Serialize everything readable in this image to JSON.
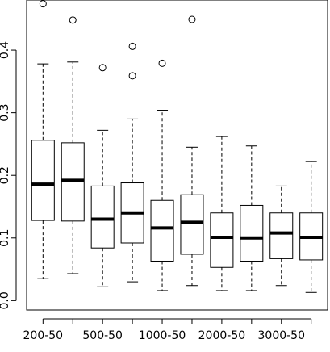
{
  "chart_data": {
    "type": "boxplot",
    "title": "",
    "xlabel": "",
    "ylabel": "",
    "ylim": [
      -0.015,
      0.48
    ],
    "y_ticks": [
      0.0,
      0.1,
      0.2,
      0.3,
      0.4
    ],
    "y_tick_labels": [
      "0.0",
      "0.1",
      "0.2",
      "0.3",
      "0.4"
    ],
    "x_tick_labels": [
      "200-50",
      "500-50",
      "1000-50",
      "2000-50",
      "3000-50"
    ],
    "x_tick_positions": [
      1,
      3,
      5,
      7,
      9
    ],
    "boxes": [
      {
        "position": 1,
        "whisker_low": 0.035,
        "q1": 0.128,
        "median": 0.186,
        "q3": 0.256,
        "whisker_high": 0.378,
        "outliers": [
          0.474
        ]
      },
      {
        "position": 2,
        "whisker_low": 0.043,
        "q1": 0.127,
        "median": 0.192,
        "q3": 0.252,
        "whisker_high": 0.381,
        "outliers": [
          0.448
        ]
      },
      {
        "position": 3,
        "whisker_low": 0.022,
        "q1": 0.084,
        "median": 0.13,
        "q3": 0.183,
        "whisker_high": 0.272,
        "outliers": [
          0.372
        ]
      },
      {
        "position": 4,
        "whisker_low": 0.03,
        "q1": 0.092,
        "median": 0.14,
        "q3": 0.188,
        "whisker_high": 0.29,
        "outliers": [
          0.359,
          0.406
        ]
      },
      {
        "position": 5,
        "whisker_low": 0.016,
        "q1": 0.063,
        "median": 0.116,
        "q3": 0.16,
        "whisker_high": 0.304,
        "outliers": [
          0.379
        ]
      },
      {
        "position": 6,
        "whisker_low": 0.024,
        "q1": 0.074,
        "median": 0.125,
        "q3": 0.169,
        "whisker_high": 0.245,
        "outliers": [
          0.449
        ]
      },
      {
        "position": 7,
        "whisker_low": 0.016,
        "q1": 0.053,
        "median": 0.101,
        "q3": 0.14,
        "whisker_high": 0.262,
        "outliers": []
      },
      {
        "position": 8,
        "whisker_low": 0.016,
        "q1": 0.063,
        "median": 0.1,
        "q3": 0.152,
        "whisker_high": 0.247,
        "outliers": []
      },
      {
        "position": 9,
        "whisker_low": 0.024,
        "q1": 0.067,
        "median": 0.108,
        "q3": 0.14,
        "whisker_high": 0.183,
        "outliers": []
      },
      {
        "position": 10,
        "whisker_low": 0.013,
        "q1": 0.065,
        "median": 0.101,
        "q3": 0.14,
        "whisker_high": 0.222,
        "outliers": []
      }
    ],
    "grid": false,
    "legend": "none",
    "colors": {
      "box_fill": "#ffffff",
      "stroke": "#000000"
    }
  }
}
